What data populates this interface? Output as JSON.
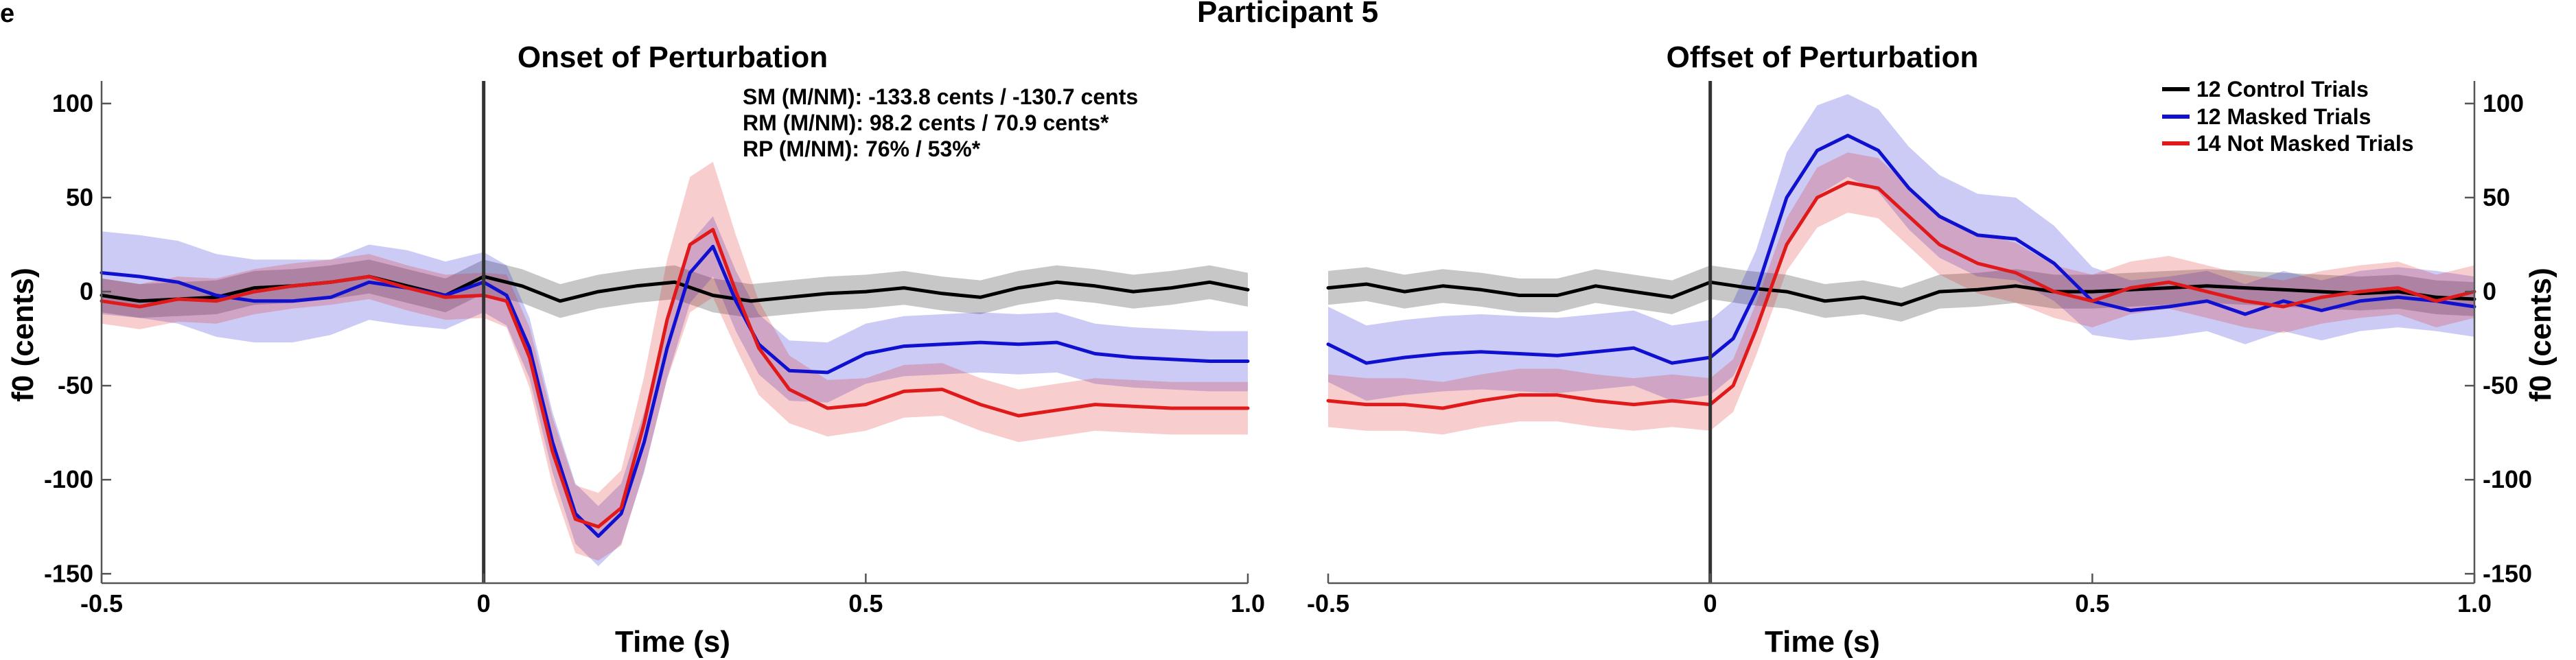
{
  "panel_letter": "e",
  "figure_title": "Participant 5",
  "legend": [
    {
      "label": "12 Control Trials",
      "color": "#000000"
    },
    {
      "label": "12 Masked Trials",
      "color": "#1010d0"
    },
    {
      "label": "14 Not Masked Trials",
      "color": "#e01a1a"
    }
  ],
  "stats": {
    "line1": "SM (M/NM): -133.8 cents / -130.7 cents",
    "line2": "RM (M/NM): 98.2 cents / 70.9 cents*",
    "line3": "RP (M/NM): 76% / 53%*"
  },
  "chart_data": [
    {
      "type": "line",
      "title": "Onset of Perturbation",
      "xlabel": "Time (s)",
      "ylabel": "f0 (cents)",
      "xlim": [
        -0.5,
        1.0
      ],
      "ylim": [
        -155,
        112
      ],
      "xticks": [
        -0.5,
        0,
        0.5,
        1.0
      ],
      "xtick_labels": [
        "-0.5",
        "0",
        "0.5",
        "1.0"
      ],
      "yticks": [
        100,
        50,
        0,
        -50,
        -100,
        -150
      ],
      "ytick_labels": [
        "100",
        "50",
        "0",
        "-50",
        "-100",
        "-150"
      ],
      "y_axis_side": "left",
      "vline_x": 0,
      "series": [
        {
          "name": "12 Control Trials",
          "color": "#000000",
          "x": [
            -0.5,
            -0.45,
            -0.4,
            -0.35,
            -0.3,
            -0.25,
            -0.2,
            -0.15,
            -0.1,
            -0.05,
            0,
            0.05,
            0.1,
            0.15,
            0.2,
            0.25,
            0.3,
            0.35,
            0.4,
            0.45,
            0.5,
            0.55,
            0.6,
            0.65,
            0.7,
            0.75,
            0.8,
            0.85,
            0.9,
            0.95,
            1.0
          ],
          "y": [
            -2,
            -5,
            -4,
            -3,
            2,
            3,
            5,
            8,
            3,
            -2,
            8,
            3,
            -5,
            0,
            3,
            5,
            -2,
            -5,
            -3,
            -1,
            0,
            2,
            -1,
            -3,
            2,
            5,
            3,
            0,
            2,
            5,
            1
          ],
          "band": [
            9,
            9,
            9,
            9,
            9,
            9,
            9,
            9,
            9,
            9,
            9,
            9,
            9,
            9,
            9,
            9,
            9,
            9,
            9,
            9,
            9,
            9,
            9,
            9,
            9,
            9,
            9,
            9,
            9,
            9,
            9
          ]
        },
        {
          "name": "12 Masked Trials",
          "color": "#1010d0",
          "x": [
            -0.5,
            -0.45,
            -0.4,
            -0.35,
            -0.3,
            -0.25,
            -0.2,
            -0.15,
            -0.1,
            -0.05,
            0,
            0.03,
            0.06,
            0.09,
            0.12,
            0.15,
            0.18,
            0.21,
            0.24,
            0.27,
            0.3,
            0.33,
            0.36,
            0.4,
            0.45,
            0.5,
            0.55,
            0.6,
            0.65,
            0.7,
            0.75,
            0.8,
            0.85,
            0.9,
            0.95,
            1.0
          ],
          "y": [
            10,
            8,
            5,
            -2,
            -5,
            -5,
            -3,
            5,
            2,
            -2,
            5,
            -2,
            -30,
            -80,
            -118,
            -130,
            -118,
            -80,
            -30,
            10,
            24,
            -5,
            -28,
            -42,
            -43,
            -33,
            -29,
            -28,
            -27,
            -28,
            -27,
            -33,
            -35,
            -36,
            -37,
            -37
          ],
          "band": [
            22,
            22,
            22,
            22,
            22,
            22,
            20,
            20,
            20,
            18,
            16,
            16,
            16,
            16,
            16,
            16,
            16,
            16,
            16,
            16,
            16,
            16,
            16,
            16,
            16,
            16,
            16,
            16,
            16,
            16,
            16,
            16,
            16,
            16,
            16,
            16
          ]
        },
        {
          "name": "14 Not Masked Trials",
          "color": "#e01a1a",
          "x": [
            -0.5,
            -0.45,
            -0.4,
            -0.35,
            -0.3,
            -0.25,
            -0.2,
            -0.15,
            -0.1,
            -0.05,
            0,
            0.03,
            0.06,
            0.09,
            0.12,
            0.15,
            0.18,
            0.21,
            0.24,
            0.27,
            0.3,
            0.33,
            0.36,
            0.4,
            0.45,
            0.5,
            0.55,
            0.6,
            0.65,
            0.7,
            0.75,
            0.8,
            0.85,
            0.9,
            0.95,
            1.0
          ],
          "y": [
            -5,
            -8,
            -4,
            -5,
            0,
            3,
            5,
            8,
            2,
            -3,
            -2,
            -5,
            -35,
            -85,
            -121,
            -125,
            -115,
            -70,
            -15,
            25,
            33,
            0,
            -30,
            -52,
            -62,
            -60,
            -53,
            -52,
            -60,
            -66,
            -63,
            -60,
            -61,
            -62,
            -62,
            -62
          ],
          "band": [
            12,
            12,
            12,
            12,
            12,
            12,
            12,
            12,
            12,
            12,
            12,
            14,
            16,
            18,
            18,
            18,
            20,
            25,
            32,
            36,
            36,
            30,
            25,
            18,
            15,
            14,
            14,
            14,
            14,
            14,
            14,
            14,
            14,
            14,
            14,
            14
          ]
        }
      ]
    },
    {
      "type": "line",
      "title": "Offset of Perturbation",
      "xlabel": "Time (s)",
      "ylabel": "f0 (cents)",
      "xlim": [
        -0.5,
        1.0
      ],
      "ylim": [
        -155,
        112
      ],
      "xticks": [
        -0.5,
        0,
        0.5,
        1.0
      ],
      "xtick_labels": [
        "-0.5",
        "0",
        "0.5",
        "1.0"
      ],
      "yticks": [
        100,
        50,
        0,
        -50,
        -100,
        -150
      ],
      "ytick_labels": [
        "100",
        "50",
        "0",
        "-50",
        "-100",
        "-150"
      ],
      "y_axis_side": "right",
      "vline_x": 0,
      "series": [
        {
          "name": "12 Control Trials",
          "color": "#000000",
          "x": [
            -0.5,
            -0.45,
            -0.4,
            -0.35,
            -0.3,
            -0.25,
            -0.2,
            -0.15,
            -0.1,
            -0.05,
            0,
            0.05,
            0.1,
            0.15,
            0.2,
            0.25,
            0.3,
            0.35,
            0.4,
            0.45,
            0.5,
            0.55,
            0.6,
            0.65,
            0.7,
            0.75,
            0.8,
            0.85,
            0.9,
            0.95,
            1.0
          ],
          "y": [
            2,
            4,
            0,
            3,
            1,
            -2,
            -2,
            3,
            0,
            -3,
            5,
            2,
            0,
            -5,
            -3,
            -7,
            0,
            1,
            3,
            0,
            0,
            1,
            2,
            3,
            2,
            1,
            0,
            -1,
            0,
            -3,
            -4
          ],
          "band": [
            9,
            9,
            9,
            9,
            9,
            9,
            9,
            9,
            9,
            9,
            9,
            9,
            9,
            9,
            9,
            9,
            9,
            9,
            9,
            9,
            9,
            9,
            9,
            9,
            9,
            9,
            9,
            9,
            9,
            9,
            9
          ]
        },
        {
          "name": "12 Masked Trials",
          "color": "#1010d0",
          "x": [
            -0.5,
            -0.45,
            -0.4,
            -0.35,
            -0.3,
            -0.25,
            -0.2,
            -0.15,
            -0.1,
            -0.05,
            0,
            0.03,
            0.06,
            0.1,
            0.14,
            0.18,
            0.22,
            0.26,
            0.3,
            0.35,
            0.4,
            0.45,
            0.5,
            0.55,
            0.6,
            0.65,
            0.7,
            0.75,
            0.8,
            0.85,
            0.9,
            0.95,
            1.0
          ],
          "y": [
            -28,
            -38,
            -35,
            -33,
            -32,
            -33,
            -34,
            -32,
            -30,
            -38,
            -35,
            -25,
            0,
            50,
            75,
            83,
            75,
            55,
            40,
            30,
            28,
            15,
            -5,
            -10,
            -8,
            -5,
            -12,
            -5,
            -10,
            -5,
            -3,
            -5,
            -8
          ],
          "band": [
            20,
            20,
            20,
            20,
            20,
            20,
            20,
            20,
            20,
            20,
            20,
            20,
            22,
            24,
            24,
            22,
            22,
            22,
            22,
            22,
            22,
            20,
            18,
            16,
            16,
            16,
            16,
            16,
            16,
            16,
            16,
            16,
            16
          ]
        },
        {
          "name": "14 Not Masked Trials",
          "color": "#e01a1a",
          "x": [
            -0.5,
            -0.45,
            -0.4,
            -0.35,
            -0.3,
            -0.25,
            -0.2,
            -0.15,
            -0.1,
            -0.05,
            0,
            0.03,
            0.06,
            0.1,
            0.14,
            0.18,
            0.22,
            0.26,
            0.3,
            0.35,
            0.4,
            0.45,
            0.5,
            0.55,
            0.6,
            0.65,
            0.7,
            0.75,
            0.8,
            0.85,
            0.9,
            0.95,
            1.0
          ],
          "y": [
            -58,
            -60,
            -60,
            -62,
            -58,
            -55,
            -55,
            -58,
            -60,
            -58,
            -60,
            -50,
            -20,
            25,
            50,
            58,
            55,
            40,
            25,
            15,
            10,
            0,
            -5,
            2,
            5,
            0,
            -5,
            -8,
            -3,
            0,
            2,
            -5,
            0
          ],
          "band": [
            14,
            14,
            14,
            14,
            14,
            14,
            14,
            14,
            14,
            14,
            14,
            14,
            14,
            14,
            16,
            16,
            16,
            16,
            16,
            16,
            16,
            14,
            14,
            14,
            14,
            14,
            14,
            14,
            14,
            14,
            14,
            14,
            14
          ]
        }
      ]
    }
  ]
}
